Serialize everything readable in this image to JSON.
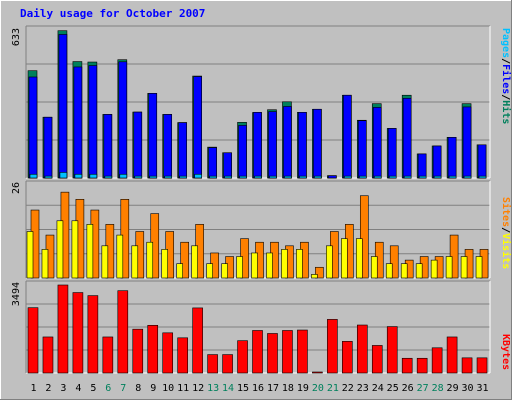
{
  "colors": {
    "background": "#c0c0c0",
    "grid": "#808080",
    "title": "#0000ff",
    "hits": "#00805c",
    "files": "#0000ff",
    "pages": "#00c0ff",
    "visits": "#ff8000",
    "sites": "#ffff00",
    "kbytes": "#ff0000",
    "weekday_label": "#000000",
    "weekend_label": "#00805c"
  },
  "chart_data": {
    "type": "bar",
    "title": "Daily usage for October 2007",
    "categories": [
      "1",
      "2",
      "3",
      "4",
      "5",
      "6",
      "7",
      "8",
      "9",
      "10",
      "11",
      "12",
      "13",
      "14",
      "15",
      "16",
      "17",
      "18",
      "19",
      "20",
      "21",
      "22",
      "23",
      "24",
      "25",
      "26",
      "27",
      "28",
      "29",
      "30",
      "31"
    ],
    "weekend_days": [
      "6",
      "7",
      "13",
      "14",
      "20",
      "21",
      "27",
      "28"
    ],
    "panels": [
      {
        "name": "top",
        "ymax_label": "633",
        "ylim": [
          0,
          633
        ],
        "legend": [
          "Pages",
          "Files",
          "Hits"
        ],
        "series": [
          {
            "name": "Hits",
            "values": [
              459,
              260,
              630,
              498,
              496,
              272,
              506,
              282,
              362,
              272,
              237,
              436,
              132,
              108,
              238,
              280,
              292,
              326,
              281,
              294,
              10,
              354,
              247,
              318,
              212,
              354,
              103,
              137,
              174,
              318,
              142
            ]
          },
          {
            "name": "Files",
            "values": [
              432,
              260,
              614,
              475,
              481,
              272,
              497,
              282,
              362,
              272,
              237,
              434,
              130,
              108,
              225,
              281,
              284,
              306,
              281,
              294,
              10,
              354,
              245,
              302,
              212,
              341,
              103,
              137,
              174,
              304,
              142
            ]
          },
          {
            "name": "Pages",
            "values": [
              16,
              8,
              24,
              16,
              16,
              8,
              16,
              8,
              8,
              8,
              8,
              16,
              8,
              8,
              8,
              8,
              8,
              8,
              8,
              8,
              0,
              8,
              8,
              8,
              8,
              8,
              8,
              8,
              8,
              8,
              8
            ]
          }
        ]
      },
      {
        "name": "middle",
        "ymax_label": "26",
        "ylim": [
          0,
          26
        ],
        "legend": [
          "Sites",
          "Visits"
        ],
        "series": [
          {
            "name": "Visits",
            "values": [
              19,
              12,
              24,
              22,
              19,
              15,
              22,
              13,
              18,
              13,
              10,
              15,
              7,
              6,
              11,
              10,
              10,
              9,
              10,
              3,
              13,
              15,
              23,
              10,
              9,
              5,
              6,
              6,
              12,
              8,
              8
            ]
          },
          {
            "name": "Sites",
            "values": [
              13,
              8,
              16,
              16,
              15,
              9,
              12,
              9,
              10,
              8,
              4,
              9,
              4,
              4,
              6,
              7,
              7,
              8,
              8,
              1,
              9,
              11,
              11,
              6,
              4,
              4,
              4,
              5,
              6,
              6,
              6
            ]
          }
        ]
      },
      {
        "name": "bottom",
        "ymax_label": "3494",
        "ylim": [
          0,
          3494
        ],
        "legend": [
          "KBytes"
        ],
        "series": [
          {
            "name": "KBytes",
            "values": [
              2593,
              1431,
              3494,
              3194,
              3073,
              1431,
              3268,
              1740,
              1894,
              1595,
              1397,
              2584,
              731,
              731,
              1283,
              1688,
              1569,
              1688,
              1706,
              40,
              2129,
              1257,
              1905,
              1094,
              1843,
              585,
              585,
              1001,
              1431,
              602,
              602
            ]
          }
        ]
      }
    ]
  }
}
